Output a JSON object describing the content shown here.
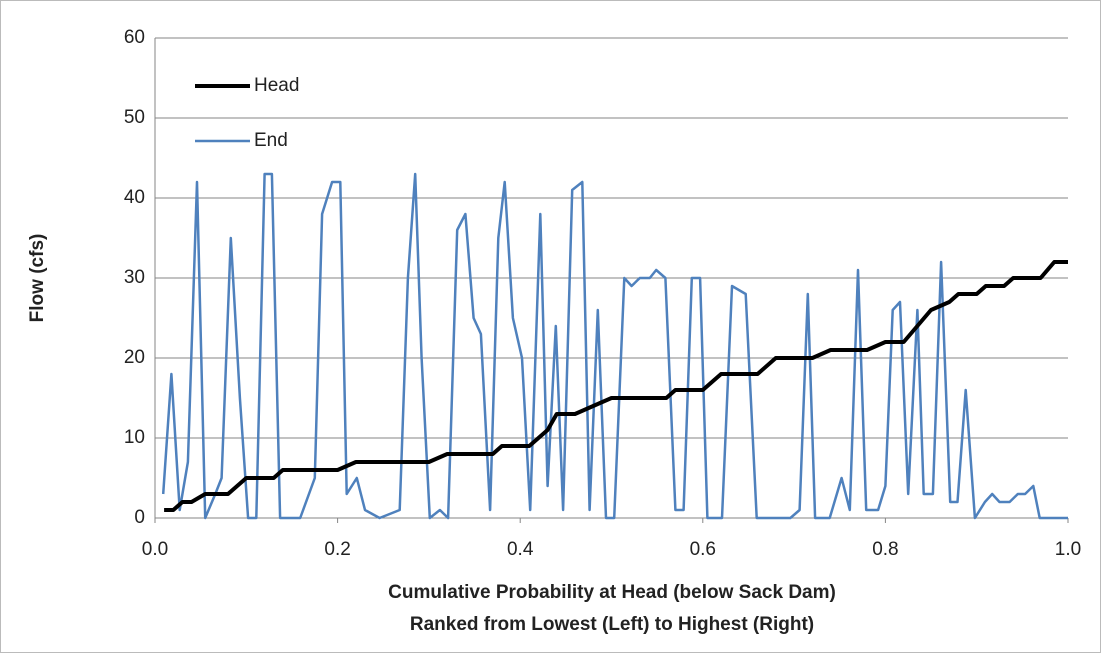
{
  "chart_data": {
    "type": "line",
    "xlabel": [
      "Cumulative Probability at Head (below Sack Dam)",
      "Ranked from Lowest (Left) to Highest (Right)"
    ],
    "ylabel": "Flow (cfs)",
    "xlim": [
      0,
      1
    ],
    "xticks": [
      {
        "value": 0,
        "label": "0.0"
      },
      0.2,
      0.4,
      0.6,
      0.8,
      {
        "value": 1,
        "label": "1.0"
      }
    ],
    "ylim": [
      0,
      60
    ],
    "yticks": [
      0,
      10,
      20,
      30,
      40,
      50,
      60
    ],
    "grid": true,
    "legend": "upper left",
    "series": [
      {
        "name": "Head",
        "color": "#000000",
        "x": [
          0.01,
          0.02,
          0.03,
          0.04,
          0.055,
          0.08,
          0.1,
          0.13,
          0.14,
          0.2,
          0.22,
          0.3,
          0.32,
          0.37,
          0.38,
          0.41,
          0.43,
          0.44,
          0.46,
          0.48,
          0.5,
          0.56,
          0.57,
          0.6,
          0.62,
          0.66,
          0.68,
          0.72,
          0.74,
          0.78,
          0.8,
          0.82,
          0.85,
          0.87,
          0.88,
          0.9,
          0.91,
          0.93,
          0.94,
          0.97,
          0.985,
          1.0
        ],
        "values": [
          1,
          1,
          2,
          2,
          3,
          3,
          5,
          5,
          6,
          6,
          7,
          7,
          8,
          8,
          9,
          9,
          11,
          13,
          13,
          14,
          15,
          15,
          16,
          16,
          18,
          18,
          20,
          20,
          21,
          21,
          22,
          22,
          26,
          27,
          28,
          28,
          29,
          29,
          30,
          30,
          32,
          32
        ]
      },
      {
        "name": "End",
        "color": "#4f81bd",
        "x": [
          0.009,
          0.018,
          0.027,
          0.036,
          0.046,
          0.055,
          0.066,
          0.073,
          0.083,
          0.093,
          0.102,
          0.111,
          0.12,
          0.128,
          0.137,
          0.159,
          0.175,
          0.183,
          0.194,
          0.203,
          0.21,
          0.221,
          0.23,
          0.246,
          0.268,
          0.277,
          0.285,
          0.292,
          0.301,
          0.312,
          0.321,
          0.331,
          0.34,
          0.349,
          0.357,
          0.367,
          0.376,
          0.383,
          0.392,
          0.402,
          0.411,
          0.422,
          0.43,
          0.439,
          0.447,
          0.457,
          0.468,
          0.476,
          0.485,
          0.494,
          0.503,
          0.514,
          0.522,
          0.531,
          0.542,
          0.549,
          0.559,
          0.57,
          0.579,
          0.588,
          0.597,
          0.605,
          0.621,
          0.632,
          0.647,
          0.659,
          0.696,
          0.706,
          0.715,
          0.723,
          0.739,
          0.752,
          0.761,
          0.77,
          0.779,
          0.792,
          0.8,
          0.808,
          0.816,
          0.825,
          0.835,
          0.842,
          0.852,
          0.861,
          0.871,
          0.879,
          0.888,
          0.898,
          0.909,
          0.917,
          0.925,
          0.936,
          0.945,
          0.953,
          0.962,
          0.969,
          1.0
        ],
        "values": [
          3,
          18,
          1,
          7,
          42,
          0,
          3,
          5,
          35,
          15,
          0,
          0,
          43,
          43,
          0,
          0,
          5,
          38,
          42,
          42,
          3,
          5,
          1,
          0,
          1,
          30,
          43,
          20,
          0,
          1,
          0,
          36,
          38,
          25,
          23,
          1,
          35,
          42,
          25,
          20,
          1,
          38,
          4,
          24,
          1,
          41,
          42,
          1,
          26,
          0,
          0,
          30,
          29,
          30,
          30,
          31,
          30,
          1,
          1,
          30,
          30,
          0,
          0,
          29,
          28,
          0,
          0,
          1,
          28,
          0,
          0,
          5,
          1,
          31,
          1,
          1,
          4,
          26,
          27,
          3,
          26,
          3,
          3,
          32,
          2,
          2,
          16,
          0,
          2,
          3,
          2,
          2,
          3,
          3,
          4,
          0,
          0
        ]
      }
    ]
  }
}
